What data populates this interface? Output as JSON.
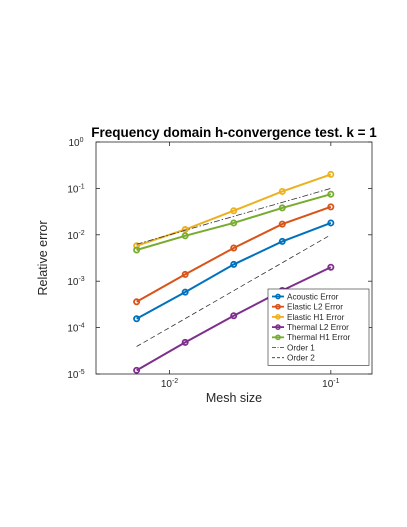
{
  "chart_data": {
    "type": "line",
    "title": "Frequency domain h-convergence test. k = 1",
    "xlabel": "Mesh size",
    "ylabel": "Relative error",
    "xscale": "log",
    "yscale": "log",
    "xlim": [
      0.0035,
      0.18
    ],
    "ylim": [
      1e-05,
      1
    ],
    "xticks": [
      {
        "value": 0.01,
        "base": "10",
        "exp": "-2"
      },
      {
        "value": 0.1,
        "base": "10",
        "exp": "-1"
      }
    ],
    "yticks": [
      {
        "value": 1e-05,
        "base": "10",
        "exp": "-5"
      },
      {
        "value": 0.0001,
        "base": "10",
        "exp": "-4"
      },
      {
        "value": 0.001,
        "base": "10",
        "exp": "-3"
      },
      {
        "value": 0.01,
        "base": "10",
        "exp": "-2"
      },
      {
        "value": 0.1,
        "base": "10",
        "exp": "-1"
      },
      {
        "value": 1,
        "base": "10",
        "exp": "0"
      }
    ],
    "grid": false,
    "legend_position": "bottom-right",
    "x": [
      0.00625,
      0.0125,
      0.025,
      0.05,
      0.1
    ],
    "series": [
      {
        "name": "Acoustic Error",
        "color": "#0072BD",
        "style": "solid",
        "marker": true,
        "values": [
          0.000155,
          0.00058,
          0.0023,
          0.0072,
          0.018
        ]
      },
      {
        "name": "Elastic L2 Error",
        "color": "#D95319",
        "style": "solid",
        "marker": true,
        "values": [
          0.00036,
          0.0014,
          0.0052,
          0.017,
          0.04
        ]
      },
      {
        "name": "Elastic H1 Error",
        "color": "#EDB120",
        "style": "solid",
        "marker": true,
        "values": [
          0.0058,
          0.013,
          0.033,
          0.086,
          0.2
        ]
      },
      {
        "name": "Thermal L2 Error",
        "color": "#7E2F8E",
        "style": "solid",
        "marker": true,
        "values": [
          1.2e-05,
          4.8e-05,
          0.00018,
          0.00063,
          0.002
        ]
      },
      {
        "name": "Thermal H1 Error",
        "color": "#77AC30",
        "style": "solid",
        "marker": true,
        "values": [
          0.0047,
          0.0095,
          0.018,
          0.038,
          0.075
        ]
      },
      {
        "name": "Order 1",
        "color": "#333333",
        "style": "dashdot",
        "marker": false,
        "values": [
          0.00625,
          0.0125,
          0.025,
          0.05,
          0.1
        ]
      },
      {
        "name": "Order 2",
        "color": "#333333",
        "style": "dashed",
        "marker": false,
        "values": [
          3.91e-05,
          0.000156,
          0.000625,
          0.0025,
          0.01
        ]
      }
    ]
  }
}
